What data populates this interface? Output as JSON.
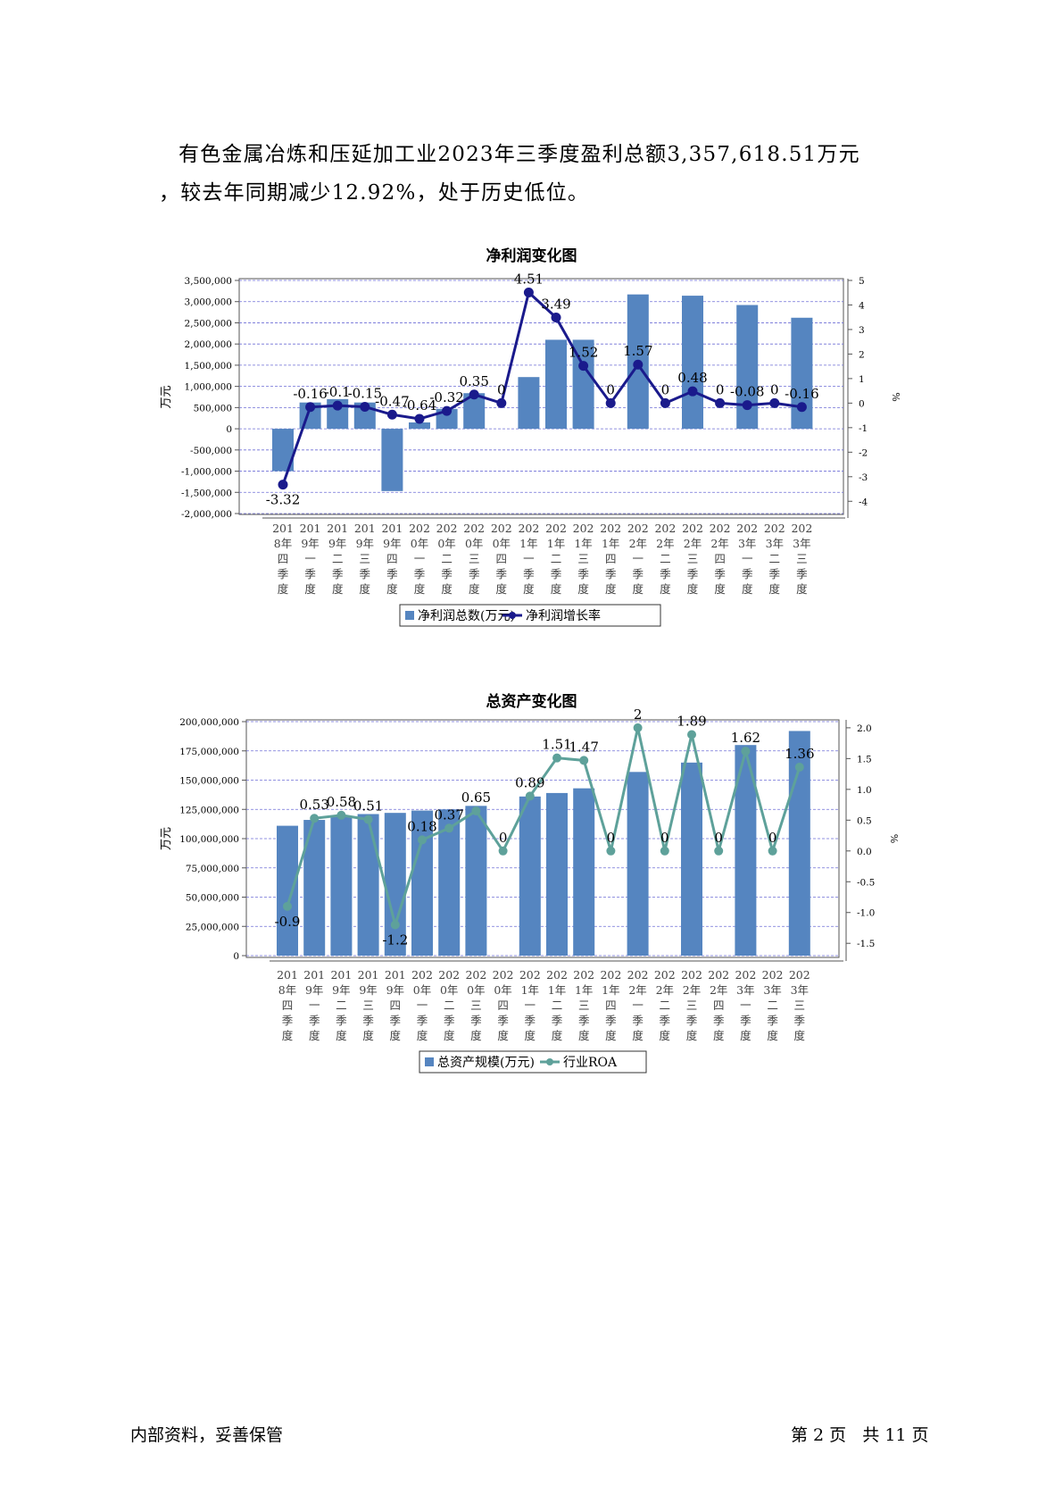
{
  "paragraph": {
    "line1": "有色金属冶炼和压延加工业2023年三季度盈利总额3,357,618.51万元",
    "line2": "，较去年同期减少12.92%，处于历史低位。"
  },
  "footer": {
    "left": "内部资料，妥善保管",
    "right": "第 2 页   共 11 页"
  },
  "colors": {
    "bar": "#5585c0",
    "line1": "#1a1a8c",
    "line2": "#5ea19a",
    "grid": "#6f6fd6"
  },
  "chart_data": [
    {
      "type": "bar+line",
      "title": "净利润变化图",
      "categories": [
        [
          "201",
          "8年",
          "四",
          "季",
          "度"
        ],
        [
          "201",
          "9年",
          "一",
          "季",
          "度"
        ],
        [
          "201",
          "9年",
          "二",
          "季",
          "度"
        ],
        [
          "201",
          "9年",
          "三",
          "季",
          "度"
        ],
        [
          "201",
          "9年",
          "四",
          "季",
          "度"
        ],
        [
          "202",
          "0年",
          "一",
          "季",
          "度"
        ],
        [
          "202",
          "0年",
          "二",
          "季",
          "度"
        ],
        [
          "202",
          "0年",
          "三",
          "季",
          "度"
        ],
        [
          "202",
          "0年",
          "四",
          "季",
          "度"
        ],
        [
          "202",
          "1年",
          "一",
          "季",
          "度"
        ],
        [
          "202",
          "1年",
          "二",
          "季",
          "度"
        ],
        [
          "202",
          "1年",
          "三",
          "季",
          "度"
        ],
        [
          "202",
          "1年",
          "四",
          "季",
          "度"
        ],
        [
          "202",
          "2年",
          "一",
          "季",
          "度"
        ],
        [
          "202",
          "2年",
          "二",
          "季",
          "度"
        ],
        [
          "202",
          "2年",
          "三",
          "季",
          "度"
        ],
        [
          "202",
          "2年",
          "四",
          "季",
          "度"
        ],
        [
          "202",
          "3年",
          "一",
          "季",
          "度"
        ],
        [
          "202",
          "3年",
          "二",
          "季",
          "度"
        ],
        [
          "202",
          "3年",
          "三",
          "季",
          "度"
        ]
      ],
      "y_left": {
        "label": "万元",
        "min": -2000000,
        "max": 3500000,
        "ticks": [
          -2000000,
          -1500000,
          -1000000,
          -500000,
          0,
          500000,
          1000000,
          1500000,
          2000000,
          2500000,
          3000000,
          3500000
        ],
        "tick_labels": [
          "-2,000,000",
          "-1,500,000",
          "-1,000,000",
          "-500,000",
          "0",
          "500,000",
          "1,000,000",
          "1,500,000",
          "2,000,000",
          "2,500,000",
          "3,000,000",
          "3,500,000"
        ]
      },
      "y_right": {
        "label": "%",
        "min": -4.5,
        "max": 5,
        "ticks": [
          -4,
          -3,
          -2,
          -1,
          0,
          1,
          2,
          3,
          4,
          5
        ],
        "tick_labels": [
          "-4",
          "-3",
          "-2",
          "-1",
          "0",
          "1",
          "2",
          "3",
          "4",
          "5"
        ]
      },
      "series": [
        {
          "name": "净利润总数(万元)",
          "kind": "bar",
          "values": [
            -1000000,
            620000,
            700000,
            620000,
            -1470000,
            150000,
            470000,
            840000,
            null,
            1220000,
            2100000,
            2100000,
            null,
            3170000,
            null,
            3140000,
            null,
            2920000,
            null,
            2620000
          ]
        },
        {
          "name": "净利润增长率",
          "kind": "line",
          "values": [
            -3.32,
            -0.16,
            -0.1,
            -0.15,
            -0.47,
            -0.64,
            -0.32,
            0.35,
            0,
            4.51,
            3.49,
            1.52,
            0,
            1.57,
            0,
            0.48,
            0,
            -0.08,
            0,
            -0.16
          ],
          "labels": [
            "-3.32",
            "-0.16",
            "-0.1",
            "-0.15",
            "-0.47",
            "-0.64",
            "-0.32",
            "0.35",
            "0",
            "4.51",
            "3.49",
            "1.52",
            "0",
            "1.57",
            "0",
            "0.48",
            "0",
            "-0.08",
            "0",
            "-0.16"
          ]
        }
      ],
      "legend": "bottom",
      "grid": true
    },
    {
      "type": "bar+line",
      "title": "总资产变化图",
      "categories": [
        [
          "201",
          "8年",
          "四",
          "季",
          "度"
        ],
        [
          "201",
          "9年",
          "一",
          "季",
          "度"
        ],
        [
          "201",
          "9年",
          "二",
          "季",
          "度"
        ],
        [
          "201",
          "9年",
          "三",
          "季",
          "度"
        ],
        [
          "201",
          "9年",
          "四",
          "季",
          "度"
        ],
        [
          "202",
          "0年",
          "一",
          "季",
          "度"
        ],
        [
          "202",
          "0年",
          "二",
          "季",
          "度"
        ],
        [
          "202",
          "0年",
          "三",
          "季",
          "度"
        ],
        [
          "202",
          "0年",
          "四",
          "季",
          "度"
        ],
        [
          "202",
          "1年",
          "一",
          "季",
          "度"
        ],
        [
          "202",
          "1年",
          "二",
          "季",
          "度"
        ],
        [
          "202",
          "1年",
          "三",
          "季",
          "度"
        ],
        [
          "202",
          "1年",
          "四",
          "季",
          "度"
        ],
        [
          "202",
          "2年",
          "一",
          "季",
          "度"
        ],
        [
          "202",
          "2年",
          "二",
          "季",
          "度"
        ],
        [
          "202",
          "2年",
          "三",
          "季",
          "度"
        ],
        [
          "202",
          "2年",
          "四",
          "季",
          "度"
        ],
        [
          "202",
          "3年",
          "一",
          "季",
          "度"
        ],
        [
          "202",
          "3年",
          "二",
          "季",
          "度"
        ],
        [
          "202",
          "3年",
          "三",
          "季",
          "度"
        ]
      ],
      "y_left": {
        "label": "万元",
        "min": 0,
        "max": 200000000,
        "ticks": [
          0,
          25000000,
          50000000,
          75000000,
          100000000,
          125000000,
          150000000,
          175000000,
          200000000
        ],
        "tick_labels": [
          "0",
          "25,000,000",
          "50,000,000",
          "75,000,000",
          "100,000,000",
          "125,000,000",
          "150,000,000",
          "175,000,000",
          "200,000,000"
        ]
      },
      "y_right": {
        "label": "%",
        "min": -1.7,
        "max": 2.1,
        "ticks": [
          -1.5,
          -1.0,
          -0.5,
          0.0,
          0.5,
          1.0,
          1.5,
          2.0
        ],
        "tick_labels": [
          "-1.5",
          "-1.0",
          "-0.5",
          "0.0",
          "0.5",
          "1.0",
          "1.5",
          "2.0"
        ]
      },
      "series": [
        {
          "name": "总资产规模(万元)",
          "kind": "bar",
          "values": [
            111000000,
            116000000,
            119000000,
            121000000,
            122000000,
            124000000,
            125000000,
            128000000,
            null,
            136000000,
            139000000,
            143000000,
            null,
            157000000,
            null,
            165000000,
            null,
            180000000,
            null,
            192000000
          ]
        },
        {
          "name": "行业ROA",
          "kind": "line",
          "values": [
            -0.9,
            0.53,
            0.58,
            0.51,
            -1.2,
            0.18,
            0.37,
            0.65,
            0,
            0.89,
            1.51,
            1.47,
            0,
            2,
            0,
            1.89,
            0,
            1.62,
            0,
            1.36
          ],
          "labels": [
            "-0.9",
            "0.53",
            "0.58",
            "0.51",
            "-1.2",
            "0.18",
            "0.37",
            "0.65",
            "0",
            "0.89",
            "1.51",
            "1.47",
            "0",
            "2",
            "0",
            "1.89",
            "0",
            "1.62",
            "0",
            "1.36"
          ]
        }
      ],
      "legend": "bottom",
      "grid": true
    }
  ]
}
